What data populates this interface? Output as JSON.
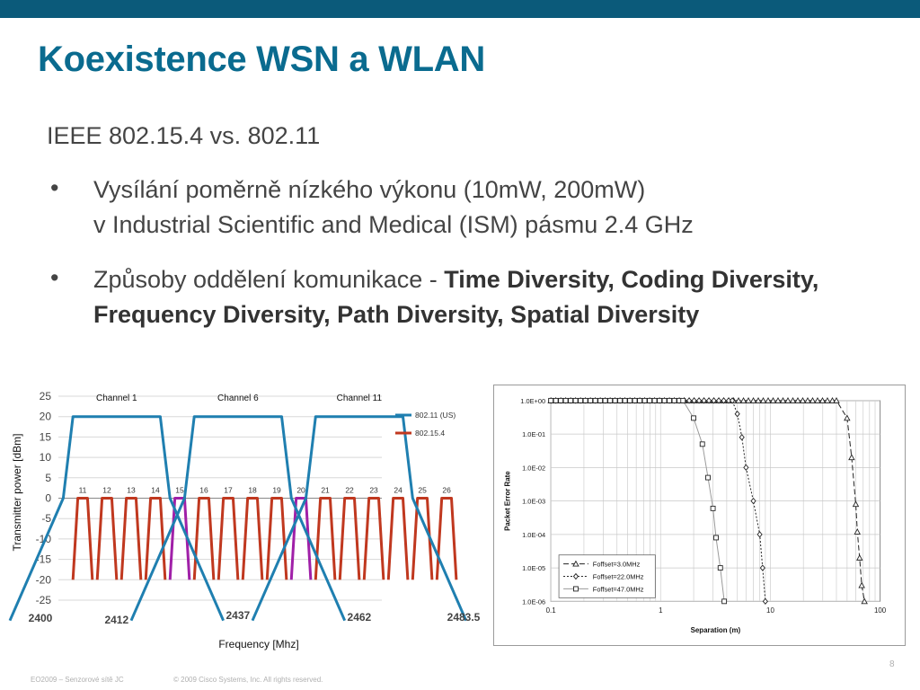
{
  "slide": {
    "title": "Koexistence WSN a WLAN",
    "subtitle": "IEEE 802.15.4 vs. 802.11",
    "bullet_glyph": "•",
    "bullets": [
      {
        "line1": "Vysílání poměrně nízkého výkonu (10mW, 200mW)",
        "line2": "v Industrial Scientific and Medical (ISM) pásmu 2.4 GHz"
      },
      {
        "normal": "Způsoby oddělení komunikace - ",
        "bold": "Time Diversity, Coding Diversity, Frequency Diversity, Path Diversity, Spatial Diversity"
      }
    ],
    "footer_left": "EO2009 – Senzorové sítě JC",
    "footer_center": "© 2009 Cisco Systems, Inc. All rights reserved.",
    "page_number": "8"
  },
  "colors": {
    "topbar": "#0b5a7a",
    "title": "#0a6b8f",
    "wifi": "#1f7fb0",
    "zigbee": "#c0381f",
    "zigbee_overlap": "#a020a8"
  },
  "chart_data": [
    {
      "type": "line",
      "title": "",
      "xlabel": "Frequency [Mhz]",
      "ylabel": "Transmitter power [dBm]",
      "ylim": [
        -25,
        25
      ],
      "yticks": [
        25,
        20,
        15,
        10,
        5,
        0,
        -5,
        -10,
        -15,
        -20,
        -25
      ],
      "x_tick_labels": [
        "2400",
        "2412",
        "2437",
        "2462",
        "2483.5"
      ],
      "channel_labels": [
        "Channel 1",
        "Channel 6",
        "Channel 11"
      ],
      "zigbee_channels": [
        "11",
        "12",
        "13",
        "14",
        "15",
        "16",
        "17",
        "18",
        "19",
        "20",
        "21",
        "22",
        "23",
        "24",
        "25",
        "26"
      ],
      "legend": [
        "802.11 (US)",
        "802.15.4"
      ],
      "legend_position": "top-right",
      "grid": true,
      "series": [
        {
          "name": "802.11 (US)",
          "channels_center_mhz": [
            2412,
            2437,
            2462
          ],
          "peak_dbm": 20
        },
        {
          "name": "802.15.4",
          "channels_center_mhz": [
            2405,
            2410,
            2415,
            2420,
            2425,
            2430,
            2435,
            2440,
            2445,
            2450,
            2455,
            2460,
            2465,
            2470,
            2475,
            2480
          ],
          "peak_dbm": 0
        }
      ]
    },
    {
      "type": "scatter",
      "title": "",
      "xlabel": "Separation (m)",
      "ylabel": "Packet Error Rate",
      "xscale": "log",
      "yscale": "log",
      "x_tick_labels": [
        "0.1",
        "1",
        "10",
        "100"
      ],
      "y_tick_labels": [
        "1.0E+00",
        "1.0E-01",
        "1.0E-02",
        "1.0E-03",
        "1.0E-04",
        "1.0E-05",
        "1.0E-06"
      ],
      "legend_position": "bottom-left",
      "grid": true,
      "series": [
        {
          "name": "Foffset=3.0MHz",
          "marker": "triangle",
          "x": [
            0.1,
            40,
            50,
            55,
            60,
            62,
            65,
            68,
            72
          ],
          "y": [
            1,
            1,
            0.3,
            0.02,
            0.0008,
            0.00012,
            2e-05,
            3e-06,
            1e-06
          ]
        },
        {
          "name": "Foffset=22.0MHz",
          "marker": "diamond",
          "x": [
            0.1,
            4.5,
            5.0,
            5.5,
            6.0,
            7.0,
            8.0,
            8.5,
            9.0
          ],
          "y": [
            1,
            1,
            0.4,
            0.08,
            0.01,
            0.001,
            0.0001,
            1e-05,
            1e-06
          ]
        },
        {
          "name": "Foffset=47.0MHz",
          "marker": "square",
          "x": [
            0.1,
            1.6,
            2.0,
            2.4,
            2.7,
            3.0,
            3.2,
            3.5,
            3.8
          ],
          "y": [
            1,
            1,
            0.3,
            0.05,
            0.005,
            0.0006,
            8e-05,
            1e-05,
            1e-06
          ]
        }
      ]
    }
  ]
}
